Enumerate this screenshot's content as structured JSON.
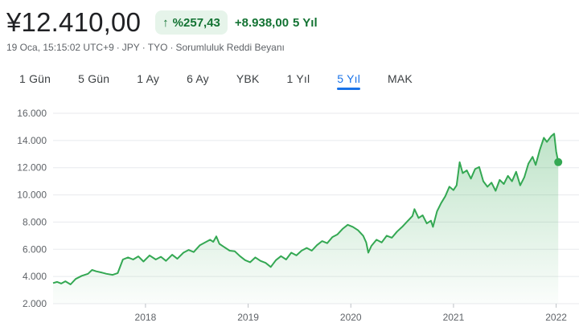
{
  "header": {
    "price": "¥12.410,00",
    "pct_change": "%257,43",
    "abs_change": "+8.938,00",
    "change_period": "5 Yıl",
    "meta": {
      "date": "19 Oca, 15:15:02 UTC+9",
      "currency": "JPY",
      "exchange": "TYO",
      "disclaimer": "Sorumluluk Reddi Beyanı",
      "separator": "·"
    }
  },
  "tabs": [
    {
      "label": "1 Gün",
      "active": false
    },
    {
      "label": "5 Gün",
      "active": false
    },
    {
      "label": "1 Ay",
      "active": false
    },
    {
      "label": "6 Ay",
      "active": false
    },
    {
      "label": "YBK",
      "active": false
    },
    {
      "label": "1 Yıl",
      "active": false
    },
    {
      "label": "5 Yıl",
      "active": true
    },
    {
      "label": "MAK",
      "active": false
    }
  ],
  "colors": {
    "line": "#34a853",
    "fill_top": "#34a853",
    "grid": "#e8eaed",
    "accent": "#1a73e8",
    "positive": "#137333"
  },
  "chart_data": {
    "type": "area",
    "title": "",
    "xlabel": "",
    "ylabel": "",
    "ylim": [
      2000,
      16000
    ],
    "yticks": [
      2000,
      4000,
      6000,
      8000,
      10000,
      12000,
      14000,
      16000
    ],
    "ytick_labels": [
      "2.000",
      "4.000",
      "6.000",
      "8.000",
      "10.000",
      "12.000",
      "14.000",
      "16.000"
    ],
    "xlim": [
      2017.1,
      2022.05
    ],
    "xticks": [
      2018,
      2019,
      2020,
      2021,
      2022
    ],
    "xtick_labels": [
      "2018",
      "2019",
      "2020",
      "2021",
      "2022"
    ],
    "grid": true,
    "series": [
      {
        "values": [
          [
            2017.1,
            3520
          ],
          [
            2017.14,
            3600
          ],
          [
            2017.18,
            3480
          ],
          [
            2017.22,
            3650
          ],
          [
            2017.27,
            3420
          ],
          [
            2017.32,
            3820
          ],
          [
            2017.38,
            4050
          ],
          [
            2017.44,
            4200
          ],
          [
            2017.48,
            4480
          ],
          [
            2017.52,
            4380
          ],
          [
            2017.57,
            4300
          ],
          [
            2017.62,
            4200
          ],
          [
            2017.68,
            4120
          ],
          [
            2017.73,
            4250
          ],
          [
            2017.78,
            5250
          ],
          [
            2017.83,
            5400
          ],
          [
            2017.88,
            5250
          ],
          [
            2017.93,
            5480
          ],
          [
            2017.98,
            5100
          ],
          [
            2018.04,
            5550
          ],
          [
            2018.1,
            5250
          ],
          [
            2018.15,
            5450
          ],
          [
            2018.2,
            5150
          ],
          [
            2018.26,
            5600
          ],
          [
            2018.31,
            5300
          ],
          [
            2018.37,
            5750
          ],
          [
            2018.42,
            5950
          ],
          [
            2018.47,
            5800
          ],
          [
            2018.53,
            6300
          ],
          [
            2018.58,
            6500
          ],
          [
            2018.63,
            6700
          ],
          [
            2018.66,
            6550
          ],
          [
            2018.69,
            6950
          ],
          [
            2018.72,
            6400
          ],
          [
            2018.76,
            6200
          ],
          [
            2018.82,
            5900
          ],
          [
            2018.87,
            5850
          ],
          [
            2018.92,
            5500
          ],
          [
            2018.97,
            5200
          ],
          [
            2019.02,
            5050
          ],
          [
            2019.07,
            5400
          ],
          [
            2019.12,
            5150
          ],
          [
            2019.17,
            5000
          ],
          [
            2019.22,
            4700
          ],
          [
            2019.27,
            5200
          ],
          [
            2019.32,
            5500
          ],
          [
            2019.37,
            5250
          ],
          [
            2019.42,
            5750
          ],
          [
            2019.47,
            5550
          ],
          [
            2019.52,
            5900
          ],
          [
            2019.57,
            6100
          ],
          [
            2019.62,
            5900
          ],
          [
            2019.67,
            6300
          ],
          [
            2019.72,
            6600
          ],
          [
            2019.77,
            6450
          ],
          [
            2019.82,
            6900
          ],
          [
            2019.87,
            7100
          ],
          [
            2019.92,
            7500
          ],
          [
            2019.97,
            7800
          ],
          [
            2020.02,
            7650
          ],
          [
            2020.07,
            7400
          ],
          [
            2020.12,
            7000
          ],
          [
            2020.15,
            6500
          ],
          [
            2020.17,
            5750
          ],
          [
            2020.2,
            6250
          ],
          [
            2020.25,
            6700
          ],
          [
            2020.3,
            6500
          ],
          [
            2020.35,
            7000
          ],
          [
            2020.4,
            6850
          ],
          [
            2020.45,
            7300
          ],
          [
            2020.5,
            7650
          ],
          [
            2020.55,
            8050
          ],
          [
            2020.6,
            8450
          ],
          [
            2020.62,
            8950
          ],
          [
            2020.66,
            8300
          ],
          [
            2020.7,
            8500
          ],
          [
            2020.74,
            7900
          ],
          [
            2020.78,
            8100
          ],
          [
            2020.8,
            7650
          ],
          [
            2020.84,
            8800
          ],
          [
            2020.88,
            9400
          ],
          [
            2020.92,
            9900
          ],
          [
            2020.96,
            10600
          ],
          [
            2021.0,
            10350
          ],
          [
            2021.03,
            10700
          ],
          [
            2021.06,
            12400
          ],
          [
            2021.09,
            11600
          ],
          [
            2021.13,
            11800
          ],
          [
            2021.17,
            11200
          ],
          [
            2021.21,
            11900
          ],
          [
            2021.25,
            12050
          ],
          [
            2021.29,
            11000
          ],
          [
            2021.33,
            10600
          ],
          [
            2021.37,
            10900
          ],
          [
            2021.41,
            10300
          ],
          [
            2021.45,
            11100
          ],
          [
            2021.49,
            10800
          ],
          [
            2021.53,
            11400
          ],
          [
            2021.57,
            11000
          ],
          [
            2021.61,
            11700
          ],
          [
            2021.65,
            10700
          ],
          [
            2021.69,
            11300
          ],
          [
            2021.73,
            12300
          ],
          [
            2021.77,
            12800
          ],
          [
            2021.8,
            12200
          ],
          [
            2021.84,
            13300
          ],
          [
            2021.88,
            14200
          ],
          [
            2021.91,
            13900
          ],
          [
            2021.95,
            14300
          ],
          [
            2021.98,
            14500
          ],
          [
            2022.0,
            13200
          ],
          [
            2022.02,
            12410
          ]
        ]
      }
    ],
    "last_value": 12410
  }
}
